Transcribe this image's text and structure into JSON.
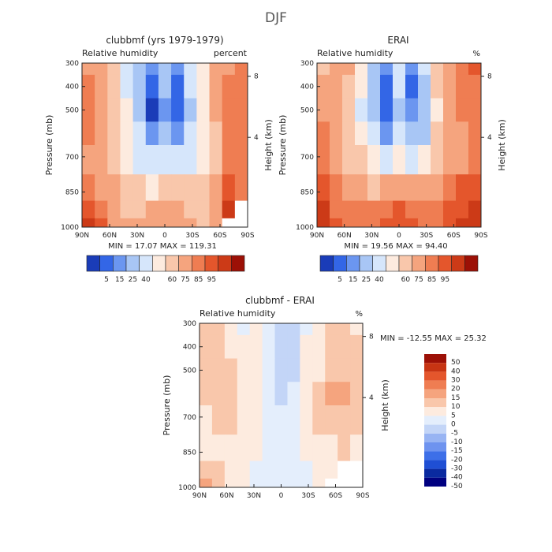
{
  "figure_title": "DJF",
  "colors": {
    "contour_ramp": [
      "#000080",
      "#1a3cb8",
      "#3366e6",
      "#6b96f0",
      "#a8c6f5",
      "#d6e6fb",
      "#fdebdf",
      "#f9c7ab",
      "#f5a47e",
      "#ef7d52",
      "#e4562c",
      "#cc3a17",
      "#9c1006"
    ],
    "diff_ramp": [
      "#000080",
      "#0a2aa0",
      "#1f4fd4",
      "#3d6fe8",
      "#6e93ef",
      "#98b4f3",
      "#c3d5f7",
      "#e4eefc",
      "#fdebdf",
      "#f9c7ab",
      "#f5a47e",
      "#ef7d52",
      "#e4562c",
      "#c73413",
      "#9c1006"
    ],
    "missing": "#ffffff",
    "frame": "#222222"
  },
  "chart_data": [
    {
      "type": "heatmap",
      "title": "clubbmf (yrs 1979-1979)",
      "subtitle_left": "Relative humidity",
      "subtitle_right": "percent",
      "xlabel": "",
      "ylabel": "Pressure (mb)",
      "ylabel_right": "Height (km)",
      "x_ticks": [
        "90N",
        "60N",
        "30N",
        "0",
        "30S",
        "60S",
        "90S"
      ],
      "y_ticks": [
        "300",
        "400",
        "500",
        "700",
        "850",
        "1000"
      ],
      "y_right_ticks": [
        "8",
        "4"
      ],
      "stats": "MIN =   17.07   MAX =  119.31",
      "zlim": [
        0,
        120
      ],
      "x": [
        90,
        75,
        60,
        45,
        30,
        15,
        0,
        -15,
        -30,
        -45,
        -60,
        -75,
        -90
      ],
      "y": [
        300,
        400,
        500,
        600,
        700,
        850,
        925,
        1000
      ],
      "z": [
        [
          78,
          75,
          68,
          55,
          45,
          30,
          40,
          30,
          50,
          60,
          80,
          82,
          85
        ],
        [
          85,
          78,
          70,
          55,
          42,
          22,
          38,
          25,
          48,
          62,
          82,
          84,
          88
        ],
        [
          88,
          80,
          72,
          58,
          40,
          18,
          35,
          24,
          45,
          60,
          78,
          86,
          90
        ],
        [
          85,
          78,
          70,
          60,
          48,
          30,
          45,
          35,
          50,
          60,
          70,
          88,
          92
        ],
        [
          82,
          76,
          68,
          62,
          55,
          48,
          55,
          50,
          55,
          62,
          72,
          88,
          90
        ],
        [
          92,
          82,
          74,
          68,
          66,
          64,
          68,
          65,
          66,
          68,
          80,
          100,
          88
        ],
        [
          100,
          88,
          78,
          72,
          72,
          78,
          78,
          76,
          72,
          72,
          78,
          108,
          null
        ],
        [
          110,
          95,
          82,
          75,
          75,
          80,
          80,
          80,
          75,
          72,
          78,
          null,
          null
        ]
      ],
      "colorbar_labels": [
        "5",
        "15",
        "25",
        "40",
        "60",
        "75",
        "85",
        "95"
      ]
    },
    {
      "type": "heatmap",
      "title": "ERAI",
      "subtitle_left": "Relative humidity",
      "subtitle_right": "%",
      "xlabel": "",
      "ylabel": "Pressure (mb)",
      "ylabel_right": "Height (km)",
      "x_ticks": [
        "90N",
        "60N",
        "30N",
        "0",
        "30S",
        "60S",
        "90S"
      ],
      "y_ticks": [
        "300",
        "400",
        "500",
        "700",
        "850",
        "1000"
      ],
      "y_right_ticks": [
        "8",
        "4"
      ],
      "stats": "MIN =   19.56   MAX =   94.40",
      "zlim": [
        0,
        100
      ],
      "x": [
        90,
        75,
        60,
        45,
        30,
        15,
        0,
        -15,
        -30,
        -45,
        -60,
        -75,
        -90
      ],
      "y": [
        300,
        400,
        500,
        600,
        700,
        850,
        925,
        1000
      ],
      "z": [
        [
          60,
          62,
          65,
          50,
          35,
          25,
          45,
          28,
          42,
          58,
          68,
          70,
          78
        ],
        [
          65,
          62,
          60,
          50,
          35,
          20,
          40,
          22,
          35,
          55,
          66,
          70,
          72
        ],
        [
          68,
          62,
          58,
          45,
          32,
          22,
          38,
          25,
          32,
          50,
          65,
          70,
          72
        ],
        [
          70,
          64,
          58,
          50,
          40,
          30,
          42,
          32,
          38,
          55,
          66,
          68,
          70
        ],
        [
          72,
          66,
          60,
          54,
          48,
          45,
          50,
          45,
          48,
          58,
          66,
          68,
          72
        ],
        [
          80,
          70,
          64,
          62,
          60,
          62,
          66,
          64,
          62,
          64,
          70,
          78,
          80
        ],
        [
          86,
          74,
          70,
          70,
          70,
          76,
          82,
          74,
          70,
          72,
          78,
          84,
          86
        ],
        [
          92,
          80,
          74,
          74,
          72,
          78,
          80,
          78,
          74,
          74,
          80,
          86,
          90
        ]
      ],
      "colorbar_labels": [
        "5",
        "15",
        "25",
        "40",
        "60",
        "75",
        "85",
        "95"
      ]
    },
    {
      "type": "heatmap",
      "title": "clubbmf - ERAI",
      "subtitle_left": "Relative humidity",
      "subtitle_right": "%",
      "xlabel": "",
      "ylabel": "Pressure (mb)",
      "ylabel_right": "Height (km)",
      "x_ticks": [
        "90N",
        "60N",
        "30N",
        "0",
        "30S",
        "60S",
        "90S"
      ],
      "y_ticks": [
        "300",
        "400",
        "500",
        "700",
        "850",
        "1000"
      ],
      "y_right_ticks": [
        "8",
        "4"
      ],
      "stats": "MIN = -12.55   MAX =   25.32",
      "zlim": [
        -55,
        55
      ],
      "x": [
        90,
        75,
        60,
        45,
        30,
        15,
        0,
        -15,
        -30,
        -45,
        -60,
        -75,
        -90
      ],
      "y": [
        300,
        400,
        500,
        600,
        700,
        850,
        925,
        1000
      ],
      "z": [
        [
          15,
          14,
          5,
          3,
          8,
          -2,
          -8,
          -5,
          3,
          5,
          12,
          18,
          10
        ],
        [
          15,
          15,
          10,
          5,
          8,
          -2,
          -8,
          -5,
          4,
          6,
          14,
          14,
          12
        ],
        [
          14,
          16,
          12,
          8,
          6,
          -3,
          -10,
          -4,
          5,
          8,
          18,
          14,
          12
        ],
        [
          12,
          14,
          14,
          10,
          6,
          0,
          -4,
          -2,
          8,
          14,
          22,
          20,
          14
        ],
        [
          10,
          12,
          14,
          10,
          6,
          2,
          -2,
          2,
          8,
          14,
          18,
          18,
          14
        ],
        [
          10,
          10,
          8,
          6,
          4,
          2,
          2,
          2,
          4,
          6,
          8,
          12,
          10
        ],
        [
          16,
          12,
          8,
          4,
          2,
          2,
          2,
          2,
          2,
          4,
          6,
          null,
          null
        ],
        [
          22,
          16,
          8,
          4,
          2,
          2,
          0,
          2,
          2,
          4,
          null,
          null,
          null
        ]
      ],
      "colorbar_labels": [
        "50",
        "40",
        "30",
        "20",
        "15",
        "10",
        "5",
        "0",
        "-5",
        "-10",
        "-15",
        "-20",
        "-30",
        "-40",
        "-50"
      ]
    }
  ]
}
